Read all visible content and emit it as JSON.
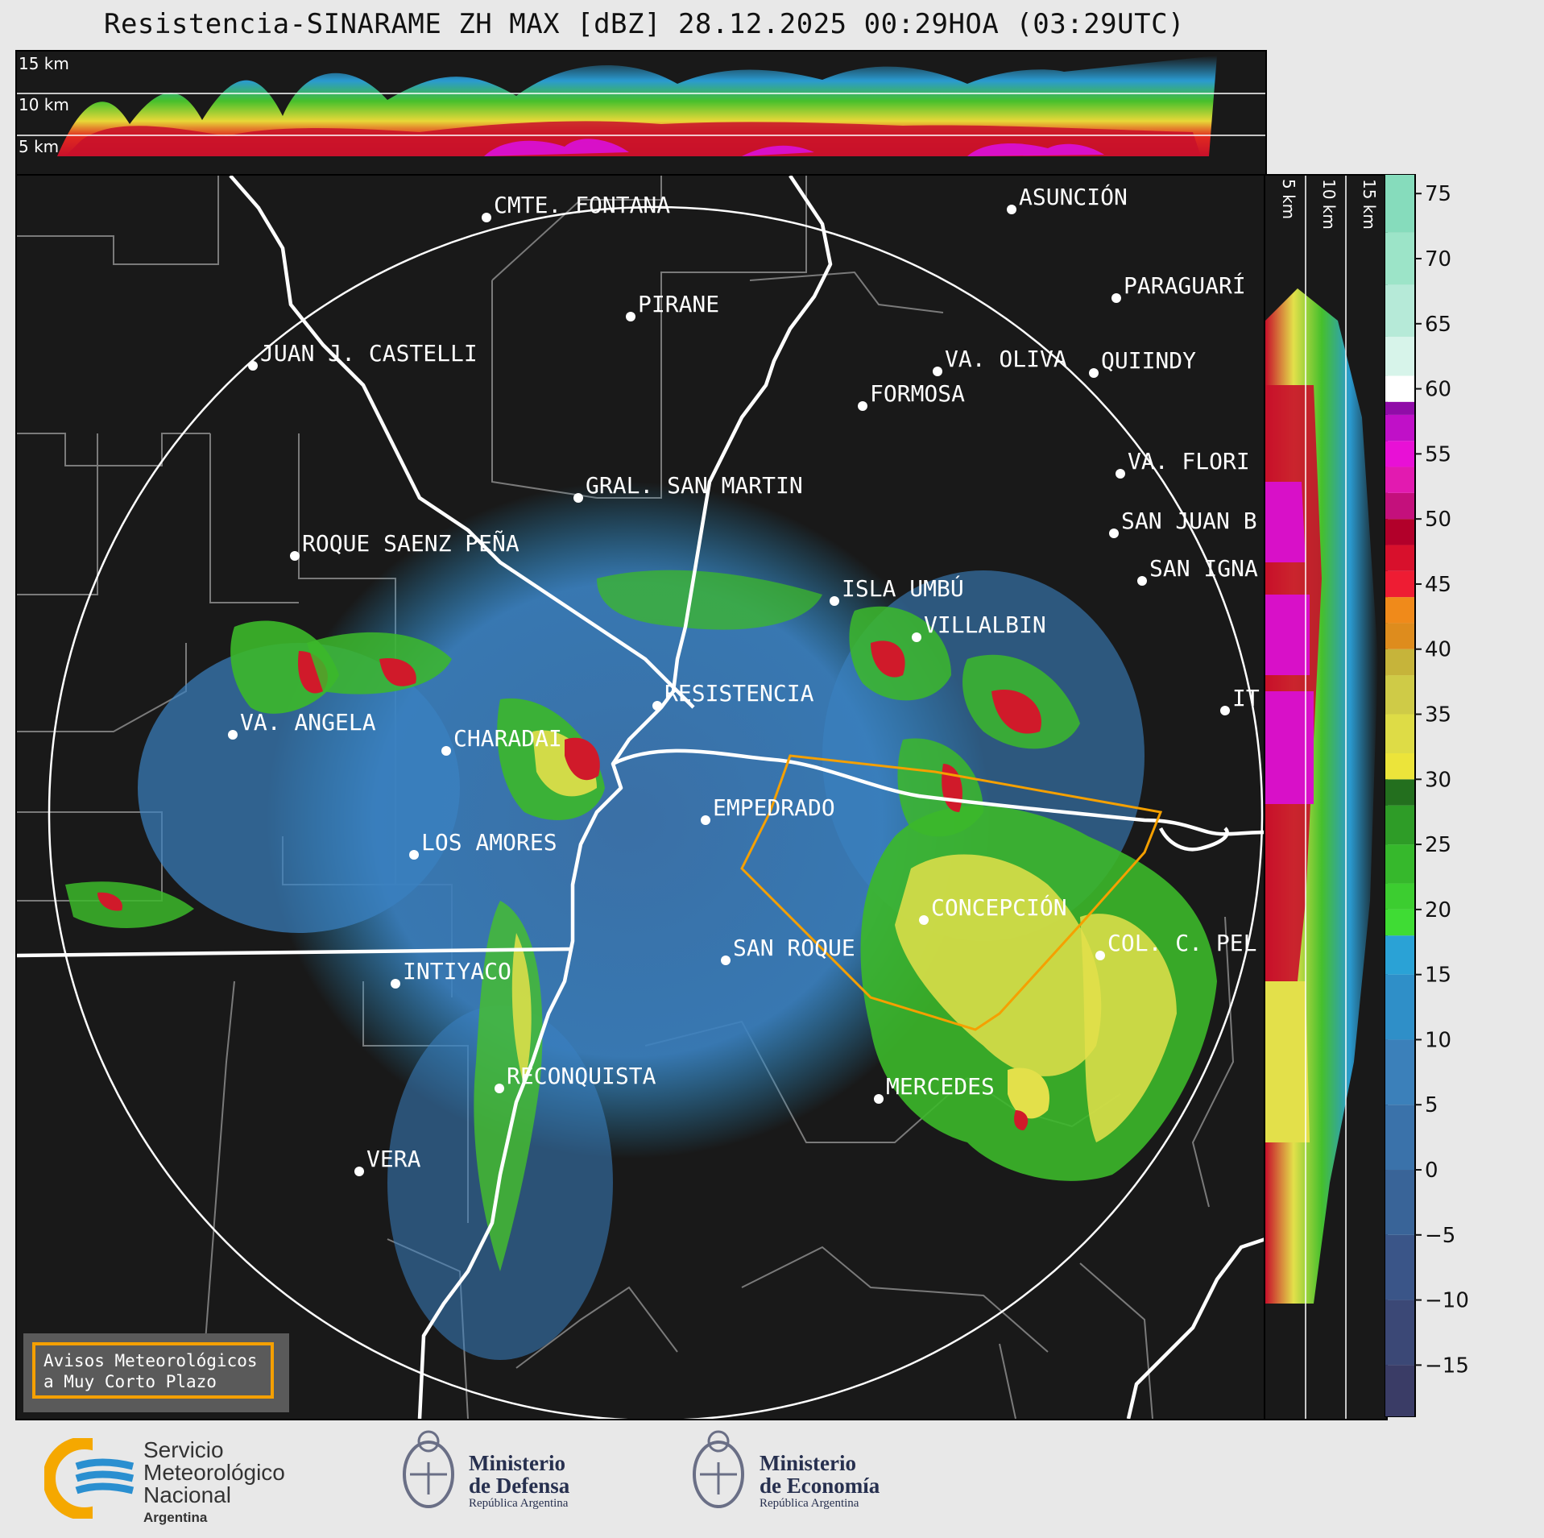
{
  "header": {
    "title": "Resistencia-SINARAME ZH MAX [dBZ] 28.12.2025 00:29HOA (03:29UTC)"
  },
  "top_section": {
    "altitude_labels": [
      "15 km",
      "10 km",
      "5 km"
    ]
  },
  "side_section": {
    "altitude_labels": [
      "5 km",
      "10 km",
      "15 km"
    ]
  },
  "map": {
    "cities": [
      {
        "name": "CMTE. FONTANA"
      },
      {
        "name": "ASUNCIÓN"
      },
      {
        "name": "PARAGUARÍ"
      },
      {
        "name": "PIRANE"
      },
      {
        "name": "JUAN J. CASTELLI"
      },
      {
        "name": "VA. OLIVA"
      },
      {
        "name": "QUIINDY"
      },
      {
        "name": "FORMOSA"
      },
      {
        "name": "VA. FLORI"
      },
      {
        "name": "GRAL. SAN MARTIN"
      },
      {
        "name": "SAN JUAN B"
      },
      {
        "name": "ROQUE SAENZ PEÑA"
      },
      {
        "name": "SAN IGNA"
      },
      {
        "name": "ISLA UMBÚ"
      },
      {
        "name": "VILLALBIN"
      },
      {
        "name": "RESISTENCIA"
      },
      {
        "name": "VA. ANGELA"
      },
      {
        "name": "CHARADAI"
      },
      {
        "name": "IT"
      },
      {
        "name": "EMPEDRADO"
      },
      {
        "name": "LOS AMORES"
      },
      {
        "name": "CONCEPCIÓN"
      },
      {
        "name": "SAN ROQUE"
      },
      {
        "name": "COL. C. PEL"
      },
      {
        "name": "INTIYACO"
      },
      {
        "name": "RECONQUISTA"
      },
      {
        "name": "MERCEDES"
      },
      {
        "name": "VERA"
      }
    ]
  },
  "warning_box": {
    "line1": "Avisos Meteorológicos",
    "line2": "a Muy Corto Plazo"
  },
  "colorbar": {
    "unit": "dBZ",
    "ticks": [
      "75",
      "70",
      "65",
      "60",
      "55",
      "50",
      "45",
      "40",
      "35",
      "30",
      "25",
      "20",
      "15",
      "10",
      "5",
      "0",
      "−5",
      "−10",
      "−15"
    ],
    "colors": {
      "below_0": "#3b3f6e",
      "band_0_18": "#3f7db8",
      "band_18_30": "#2e8a2a",
      "band_30_40": "#e3e04a",
      "band_40_50": "#d01a2a",
      "band_50_60": "#d810c8",
      "band_60_76": "#8fe0c4"
    }
  },
  "logos": {
    "smn": {
      "line1": "Servicio",
      "line2": "Meteorológico",
      "line3": "Nacional",
      "line4": "Argentina",
      "icon": "smn-logo-icon"
    },
    "defensa": {
      "line1": "Ministerio",
      "line2": "de Defensa",
      "line3": "República Argentina",
      "icon": "coat-of-arms-icon"
    },
    "economia": {
      "line1": "Ministerio",
      "line2": "de Economía",
      "line3": "República Argentina",
      "icon": "coat-of-arms-icon"
    }
  }
}
